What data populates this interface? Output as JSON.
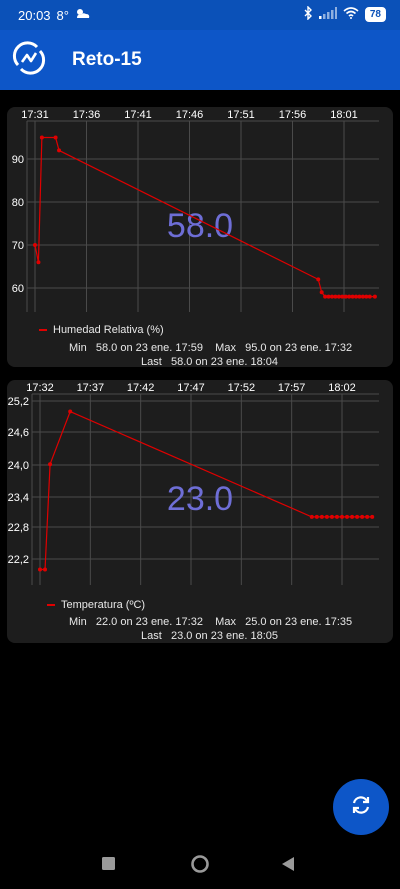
{
  "status": {
    "time": "20:03",
    "temp": "8°",
    "weather_icon": "partly-cloudy-icon",
    "battery": "78"
  },
  "app": {
    "title": "Reto-15",
    "brand_color": "#0d56c8"
  },
  "charts": [
    {
      "x_ticks": [
        "17:31",
        "17:36",
        "17:41",
        "17:46",
        "17:51",
        "17:56",
        "18:01"
      ],
      "y_ticks": [
        "90",
        "80",
        "70",
        "60"
      ],
      "big_value": "58.0",
      "legend": "Humedad Relativa (%)",
      "stats_line1": "Min   58.0 on 23 ene. 17:59    Max   95.0 on 23 ene. 17:32",
      "stats_line2": "Last   58.0 on 23 ene. 18:04"
    },
    {
      "x_ticks": [
        "17:32",
        "17:37",
        "17:42",
        "17:47",
        "17:52",
        "17:57",
        "18:02"
      ],
      "y_ticks": [
        "25,2",
        "24,6",
        "24,0",
        "23,4",
        "22,8",
        "22,2"
      ],
      "big_value": "23.0",
      "legend": "Temperatura (ºC)",
      "stats_line1": "Min   22.0 on 23 ene. 17:32    Max   25.0 on 23 ene. 17:35",
      "stats_line2": "Last   23.0 on 23 ene. 18:05"
    }
  ],
  "chart_data": [
    {
      "type": "line",
      "series": [
        {
          "name": "Humedad Relativa (%)",
          "color": "#e00000",
          "x": [
            "17:31:00",
            "17:31:20",
            "17:31:40",
            "17:33:00",
            "17:33:20",
            "17:58:30",
            "17:58:50",
            "17:59:10",
            "17:59:30",
            "17:59:50",
            "18:00:10",
            "18:00:30",
            "18:00:50",
            "18:01:10",
            "18:01:30",
            "18:01:50",
            "18:02:10",
            "18:02:30",
            "18:02:50",
            "18:03:10",
            "18:03:30",
            "18:04:00"
          ],
          "values": [
            70,
            66,
            95,
            95,
            92,
            62,
            59,
            58,
            58,
            58,
            58,
            58,
            58,
            58,
            58,
            58,
            58,
            58,
            58,
            58,
            58,
            58
          ]
        }
      ],
      "ylim": [
        56,
        97
      ],
      "grid": true,
      "legend_position": "bottom-left"
    },
    {
      "type": "line",
      "series": [
        {
          "name": "Temperatura (ºC)",
          "color": "#e00000",
          "x": [
            "17:32:00",
            "17:32:30",
            "17:33:00",
            "17:35:00",
            "17:59:00",
            "17:59:30",
            "18:00:00",
            "18:00:30",
            "18:01:00",
            "18:01:30",
            "18:02:00",
            "18:02:30",
            "18:03:00",
            "18:03:30",
            "18:04:00",
            "18:04:30",
            "18:05:00"
          ],
          "values": [
            22.0,
            22.0,
            24.0,
            25.0,
            23.0,
            23.0,
            23.0,
            23.0,
            23.0,
            23.0,
            23.0,
            23.0,
            23.0,
            23.0,
            23.0,
            23.0,
            23.0
          ]
        }
      ],
      "ylim": [
        21.9,
        25.3
      ],
      "grid": true,
      "legend_position": "bottom-left"
    }
  ],
  "fab": {
    "icon": "refresh-icon"
  },
  "navbar": {
    "icons": [
      "recents-square-icon",
      "home-circle-icon",
      "back-triangle-icon"
    ]
  }
}
